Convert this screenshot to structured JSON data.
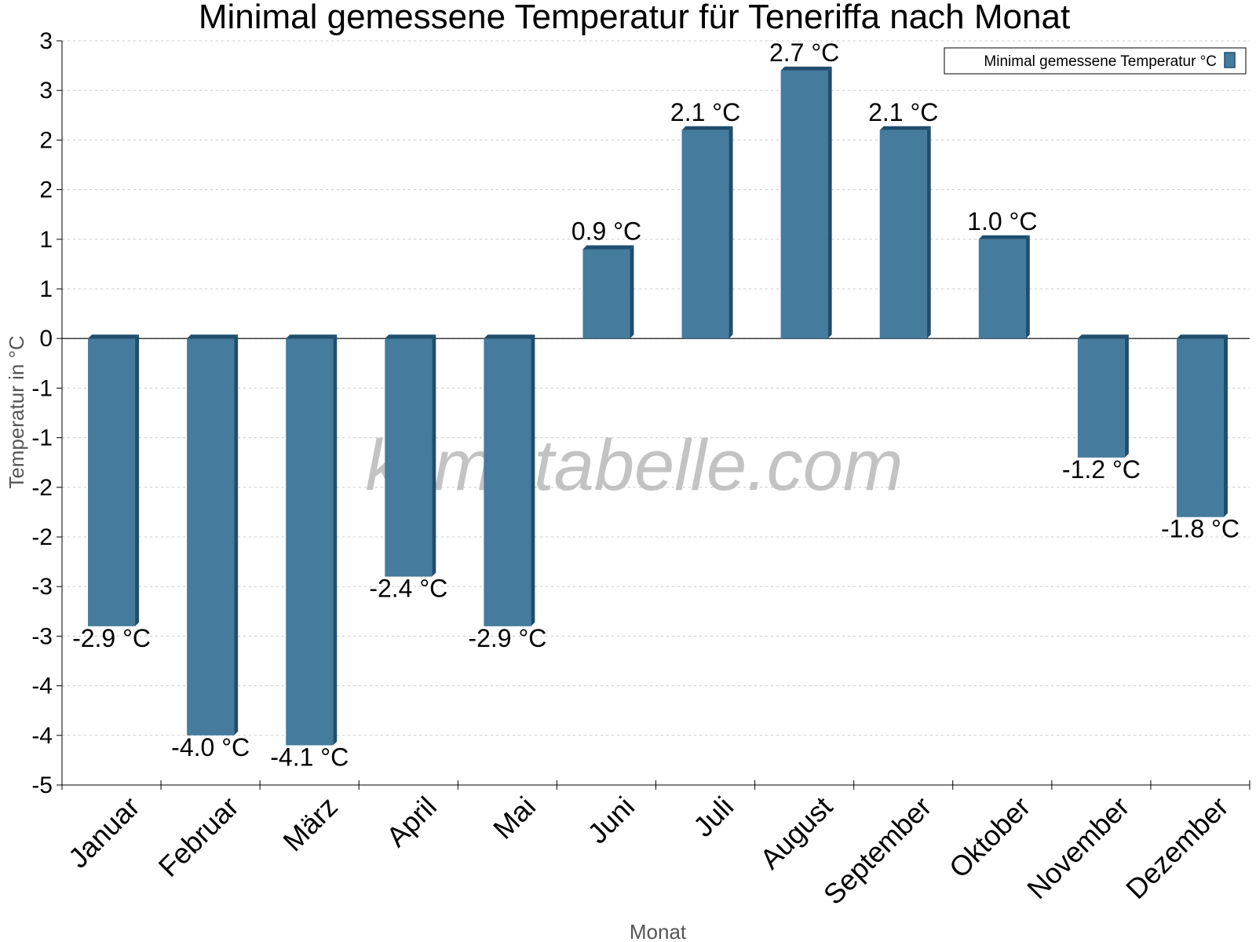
{
  "chart_data": {
    "type": "bar",
    "title": "Minimal gemessene Temperatur für Teneriffa nach Monat",
    "xlabel": "Monat",
    "ylabel": "Temperatur in °C",
    "categories": [
      "Januar",
      "Februar",
      "März",
      "April",
      "Mai",
      "Juni",
      "Juli",
      "August",
      "September",
      "Oktober",
      "November",
      "Dezember"
    ],
    "series": [
      {
        "name": "Minimal gemessene Temperatur °C",
        "values": [
          -2.9,
          -4.0,
          -4.1,
          -2.4,
          -2.9,
          0.9,
          2.1,
          2.7,
          2.1,
          1.0,
          -1.2,
          -1.8
        ],
        "data_labels": [
          "-2.9 °C",
          "-4.0 °C",
          "-4.1 °C",
          "-2.4 °C",
          "-2.9 °C",
          "0.9 °C",
          "2.1 °C",
          "2.7 °C",
          "2.1 °C",
          "1.0 °C",
          "-1.2 °C",
          "-1.8 °C"
        ],
        "color": "#457b9d"
      }
    ],
    "ylim": [
      -4.5,
      3.0
    ],
    "yticks": [
      3.0,
      2.5,
      2.0,
      1.5,
      1.0,
      0.5,
      0.0,
      -0.5,
      -1.0,
      -1.5,
      -2.0,
      -2.5,
      -3.0,
      -3.5,
      -4.0,
      -4.5
    ],
    "ytick_labels": [
      "3",
      "3",
      "2",
      "2",
      "1",
      "1",
      "0",
      "-1",
      "-1",
      "-2",
      "-2",
      "-3",
      "-3",
      "-4",
      "-4",
      "-5"
    ],
    "grid": true,
    "legend_position": "top-right",
    "watermark": "klimatabelle.com",
    "colors": {
      "bar": "#457b9d",
      "bar_side": "#1f4e6e",
      "bar_top": "#1f4e6e"
    }
  }
}
